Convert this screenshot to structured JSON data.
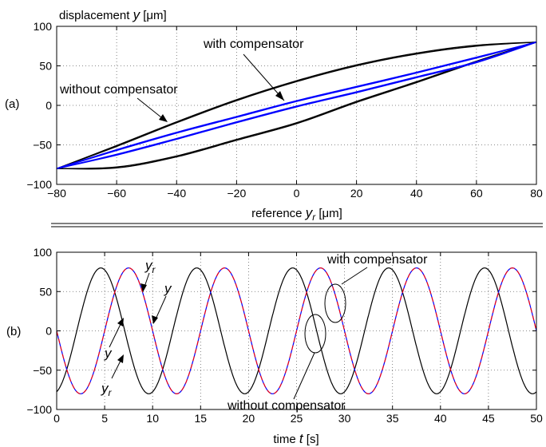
{
  "chart_data": [
    {
      "panel_label": "(a)",
      "type": "line",
      "title": "",
      "ylabel": "displacement y [μm]",
      "ylabel_prefix": "displacement ",
      "ylabel_var": "y",
      "ylabel_unit": " [μm]",
      "xlabel": "reference yr [μm]",
      "xlabel_prefix": "reference ",
      "xlabel_var": "y",
      "xlabel_sub": "r",
      "xlabel_unit": " [μm]",
      "xlim": [
        -80,
        80
      ],
      "ylim": [
        -100,
        100
      ],
      "xticks": [
        -80,
        -60,
        -40,
        -20,
        0,
        20,
        40,
        60,
        80
      ],
      "yticks": [
        -100,
        -50,
        0,
        50,
        100
      ],
      "grid": true,
      "annotations": [
        {
          "text": "with compensator",
          "target": [
            -6,
            3
          ]
        },
        {
          "text": "without compensator",
          "target": [
            -48,
            22
          ]
        }
      ],
      "series": [
        {
          "name": "without compensator",
          "color": "#000000",
          "upper_branch": [
            [
              -80,
              -80
            ],
            [
              -60,
              -52
            ],
            [
              -40,
              -22
            ],
            [
              -20,
              6
            ],
            [
              0,
              30
            ],
            [
              20,
              50
            ],
            [
              40,
              65
            ],
            [
              60,
              75
            ],
            [
              80,
              80
            ]
          ],
          "lower_branch": [
            [
              -80,
              -80
            ],
            [
              -60,
              -78
            ],
            [
              -40,
              -64
            ],
            [
              -20,
              -43
            ],
            [
              0,
              -22
            ],
            [
              20,
              5
            ],
            [
              40,
              30
            ],
            [
              60,
              56
            ],
            [
              80,
              80
            ]
          ]
        },
        {
          "name": "with compensator",
          "color": "#0000ff",
          "upper_branch": [
            [
              -80,
              -80
            ],
            [
              -60,
              -57
            ],
            [
              -40,
              -35
            ],
            [
              -20,
              -15
            ],
            [
              0,
              5
            ],
            [
              20,
              23
            ],
            [
              40,
              41
            ],
            [
              60,
              60
            ],
            [
              80,
              80
            ]
          ],
          "lower_branch": [
            [
              -80,
              -80
            ],
            [
              -60,
              -62
            ],
            [
              -40,
              -42
            ],
            [
              -20,
              -21
            ],
            [
              0,
              -1
            ],
            [
              20,
              17
            ],
            [
              40,
              36
            ],
            [
              60,
              55
            ],
            [
              80,
              80
            ]
          ]
        }
      ]
    },
    {
      "panel_label": "(b)",
      "type": "line",
      "title": "",
      "xlabel": "time t [s]",
      "xlabel_prefix": "time ",
      "xlabel_var": "t",
      "xlabel_unit": " [s]",
      "ylabel": "",
      "xlim": [
        0,
        50
      ],
      "ylim": [
        -100,
        100
      ],
      "xticks": [
        0,
        5,
        10,
        15,
        20,
        25,
        30,
        35,
        40,
        45,
        50
      ],
      "yticks": [
        -100,
        -50,
        0,
        50,
        100
      ],
      "grid": true,
      "annotations": [
        {
          "text": "with compensator"
        },
        {
          "text": "without compensator"
        },
        {
          "text": "yr",
          "var": "y",
          "sub": "r"
        },
        {
          "text": "y",
          "var": "y"
        },
        {
          "text": "y",
          "var": "y"
        },
        {
          "text": "yr",
          "var": "y",
          "sub": "r"
        }
      ],
      "series": [
        {
          "name": "yr",
          "style": "dashed",
          "color": "#ff0000",
          "amplitude": 80,
          "period": 10,
          "peak_time": 7.5
        },
        {
          "name": "y (with compensator)",
          "style": "solid",
          "color": "#0000ff",
          "amplitude": 80,
          "period": 10,
          "peak_time": 7.5
        },
        {
          "name": "y (without compensator)",
          "style": "solid",
          "color": "#000000",
          "amplitude": 80,
          "period": 10,
          "peak_time": 4.6
        }
      ]
    }
  ]
}
